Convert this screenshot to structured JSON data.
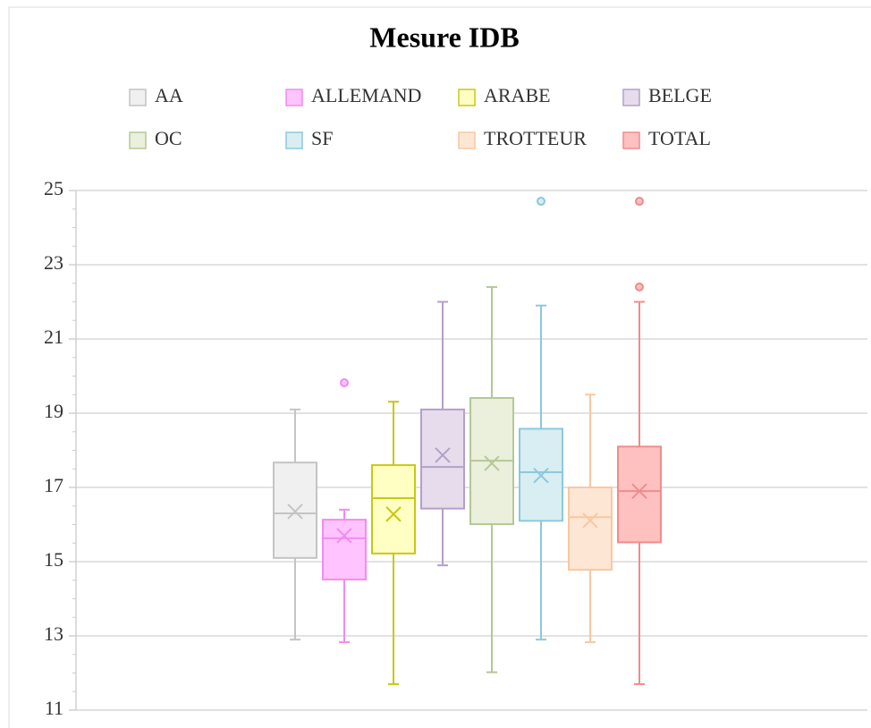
{
  "chart_data": {
    "type": "box",
    "title": "Mesure IDB",
    "ylim": [
      11,
      25
    ],
    "yticks": [
      11,
      13,
      15,
      17,
      19,
      21,
      23,
      25
    ],
    "grid": true,
    "legend": "top",
    "series": [
      {
        "name": "AA",
        "color": "#c4c4c4",
        "fill": "#f0f0f0",
        "min": 12.9,
        "q1": 15.1,
        "median": 16.3,
        "q3": 17.67,
        "max": 19.1,
        "mean": 16.35,
        "outliers": []
      },
      {
        "name": "ALLEMAND",
        "color": "#f08cf0",
        "fill": "#ffc4ff",
        "min": 12.83,
        "q1": 14.52,
        "median": 15.63,
        "q3": 16.13,
        "max": 16.4,
        "mean": 15.7,
        "outliers": [
          19.82
        ]
      },
      {
        "name": "ARABE",
        "color": "#c8c814",
        "fill": "#ffffc4",
        "min": 11.7,
        "q1": 15.22,
        "median": 16.71,
        "q3": 17.6,
        "max": 19.31,
        "mean": 16.28,
        "outliers": []
      },
      {
        "name": "BELGE",
        "color": "#b4a0c8",
        "fill": "#e6dcec",
        "min": 14.9,
        "q1": 16.43,
        "median": 17.55,
        "q3": 19.1,
        "max": 22.0,
        "mean": 17.87,
        "outliers": []
      },
      {
        "name": "OC",
        "color": "#b4c896",
        "fill": "#eaf0dc",
        "min": 12.02,
        "q1": 16.01,
        "median": 17.72,
        "q3": 19.41,
        "max": 22.4,
        "mean": 17.65,
        "outliers": []
      },
      {
        "name": "SF",
        "color": "#8cc8dc",
        "fill": "#d8eef2",
        "min": 12.9,
        "q1": 16.1,
        "median": 17.41,
        "q3": 18.58,
        "max": 21.9,
        "mean": 17.32,
        "outliers": [
          24.71
        ]
      },
      {
        "name": "TROTTEUR",
        "color": "#f8c8a0",
        "fill": "#fde6d4",
        "min": 12.83,
        "q1": 14.78,
        "median": 16.2,
        "q3": 17.0,
        "max": 19.5,
        "mean": 16.11,
        "outliers": []
      },
      {
        "name": "TOTAL",
        "color": "#f08c8c",
        "fill": "#ffc0c0",
        "min": 11.7,
        "q1": 15.52,
        "median": 16.9,
        "q3": 18.1,
        "max": 22.0,
        "mean": 16.9,
        "outliers": [
          24.71,
          22.4
        ]
      }
    ]
  }
}
